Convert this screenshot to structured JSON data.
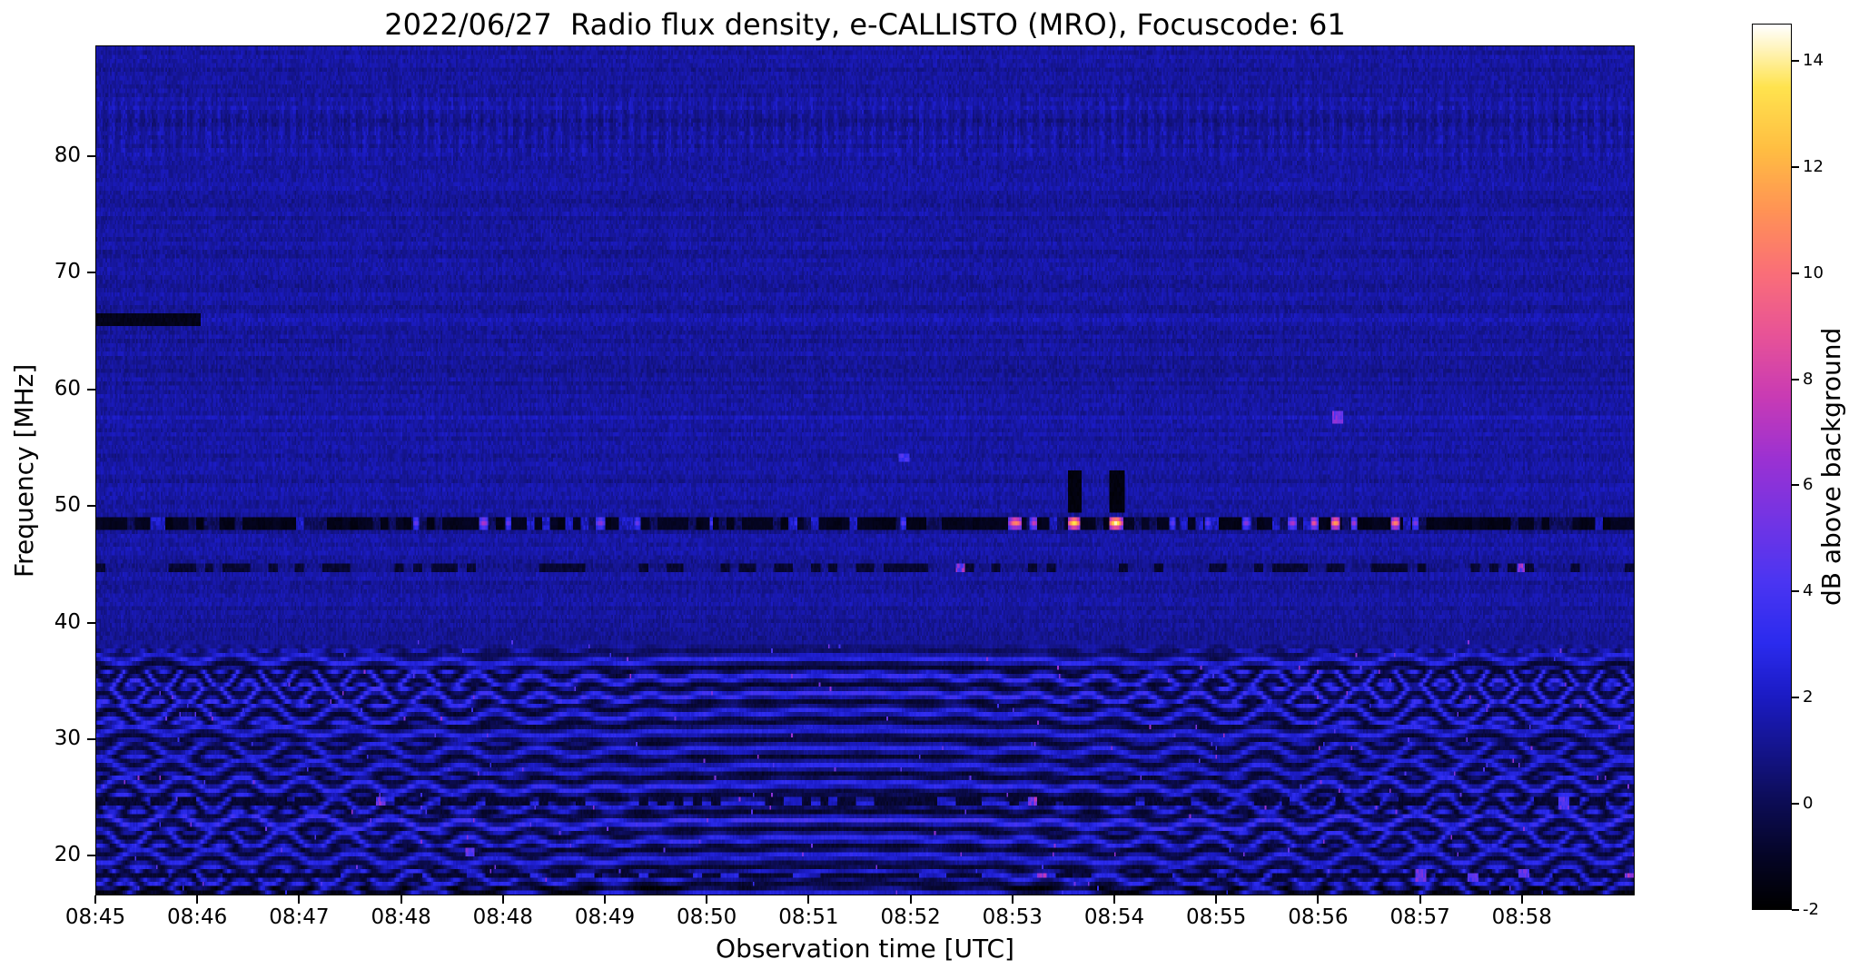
{
  "page": {
    "background": "#ffffff"
  },
  "chart_data": {
    "type": "heatmap",
    "title": "2022/06/27  Radio flux density, e-CALLISTO (MRO), Focuscode: 61",
    "xlabel": "Observation time [UTC]",
    "ylabel": "Frequency [MHz]",
    "x_ticks": [
      "08:45",
      "08:46",
      "08:47",
      "08:48",
      "08:48",
      "08:49",
      "08:50",
      "08:51",
      "08:52",
      "08:53",
      "08:54",
      "08:55",
      "08:56",
      "08:57",
      "08:58"
    ],
    "y_ticks": [
      20,
      30,
      40,
      50,
      60,
      70,
      80
    ],
    "ylim": [
      16.6,
      89.5
    ],
    "grid": false,
    "background_level_db": 1.2,
    "colorbar": {
      "label": "dB above background",
      "tick_values": [
        14,
        12,
        10,
        8,
        6,
        4,
        2,
        0,
        -2
      ],
      "min": -2,
      "max": 14.7,
      "colormap": [
        {
          "t": 0.0,
          "color": "#000000"
        },
        {
          "t": 0.06,
          "color": "#050527"
        },
        {
          "t": 0.12,
          "color": "#0c0c55"
        },
        {
          "t": 0.18,
          "color": "#14148c"
        },
        {
          "t": 0.24,
          "color": "#1b1bc4"
        },
        {
          "t": 0.3,
          "color": "#2b2bee"
        },
        {
          "t": 0.37,
          "color": "#4b35f2"
        },
        {
          "t": 0.44,
          "color": "#7334e4"
        },
        {
          "t": 0.51,
          "color": "#9c31d2"
        },
        {
          "t": 0.58,
          "color": "#c93bb4"
        },
        {
          "t": 0.65,
          "color": "#e85397"
        },
        {
          "t": 0.72,
          "color": "#fa6f78"
        },
        {
          "t": 0.79,
          "color": "#ff9355"
        },
        {
          "t": 0.86,
          "color": "#ffbe42"
        },
        {
          "t": 0.93,
          "color": "#ffe34e"
        },
        {
          "t": 1.0,
          "color": "#ffffff"
        }
      ]
    },
    "features": {
      "dark_line_66": {
        "x0": 0.0,
        "x1": 0.068,
        "f0": 65.4,
        "f1": 66.5
      },
      "rfi_line_48": {
        "f0": 47.95,
        "f1": 49.15,
        "center": 48.55,
        "bursts": [
          {
            "x": 0.208,
            "w": 0.004,
            "v": 5
          },
          {
            "x": 0.252,
            "w": 0.006,
            "v": 7
          },
          {
            "x": 0.268,
            "w": 0.004,
            "v": 5
          },
          {
            "x": 0.328,
            "w": 0.006,
            "v": 6
          },
          {
            "x": 0.352,
            "w": 0.004,
            "v": 5
          },
          {
            "x": 0.4,
            "w": 0.003,
            "v": 4
          },
          {
            "x": 0.455,
            "w": 0.003,
            "v": 3.5
          },
          {
            "x": 0.525,
            "w": 0.004,
            "v": 4.5
          },
          {
            "x": 0.598,
            "w": 0.009,
            "v": 11
          },
          {
            "x": 0.61,
            "w": 0.005,
            "v": 8
          },
          {
            "x": 0.636,
            "w": 0.008,
            "v": 14
          },
          {
            "x": 0.663,
            "w": 0.009,
            "v": 14.7
          },
          {
            "x": 0.7,
            "w": 0.004,
            "v": 5
          },
          {
            "x": 0.723,
            "w": 0.004,
            "v": 5
          },
          {
            "x": 0.748,
            "w": 0.005,
            "v": 6
          },
          {
            "x": 0.778,
            "w": 0.006,
            "v": 7
          },
          {
            "x": 0.792,
            "w": 0.005,
            "v": 9
          },
          {
            "x": 0.806,
            "w": 0.006,
            "v": 12
          },
          {
            "x": 0.818,
            "w": 0.004,
            "v": 7
          },
          {
            "x": 0.845,
            "w": 0.006,
            "v": 11
          },
          {
            "x": 0.858,
            "w": 0.004,
            "v": 6
          }
        ]
      },
      "vertical_blobs": [
        {
          "x": 0.636,
          "w": 0.009,
          "f0": 49.4,
          "f1": 53.2
        },
        {
          "x": 0.664,
          "w": 0.01,
          "f0": 49.4,
          "f1": 53.2
        }
      ],
      "dashed_rows": [
        {
          "f0": 44.2,
          "f1": 44.9,
          "duty": 0.45,
          "speckle": 0.005
        },
        {
          "f0": 24.1,
          "f1": 24.9,
          "duty": 0.5,
          "speckle": 0.035
        },
        {
          "f0": 17.9,
          "f1": 18.6,
          "duty": 0.5,
          "speckle": 0.02
        }
      ],
      "wave_region": {
        "f_max": 36.8,
        "stripe_period": 1.55
      },
      "comb_band": {
        "f0": 78.5,
        "f1": 86.5
      },
      "row_tweaks": [
        {
          "f": 83.0,
          "hw": 0.6,
          "dv": -0.35
        },
        {
          "f": 66.0,
          "hw": 0.3,
          "dv": 0.25
        },
        {
          "f": 57.4,
          "hw": 0.25,
          "dv": 0.3
        },
        {
          "f": 61.5,
          "hw": 0.3,
          "dv": -0.25
        }
      ],
      "specks": [
        {
          "x": 0.807,
          "f": 57.6,
          "v": 6.5
        },
        {
          "x": 0.525,
          "f": 54.2,
          "v": 4.5
        },
        {
          "x": 0.243,
          "f": 20.3,
          "v": 6
        },
        {
          "x": 0.862,
          "f": 18.3,
          "v": 6.5
        },
        {
          "x": 0.895,
          "f": 18.1,
          "v": 5.5
        },
        {
          "x": 0.928,
          "f": 18.4,
          "v": 6
        },
        {
          "x": 0.955,
          "f": 24.5,
          "v": 5.5
        }
      ]
    }
  }
}
